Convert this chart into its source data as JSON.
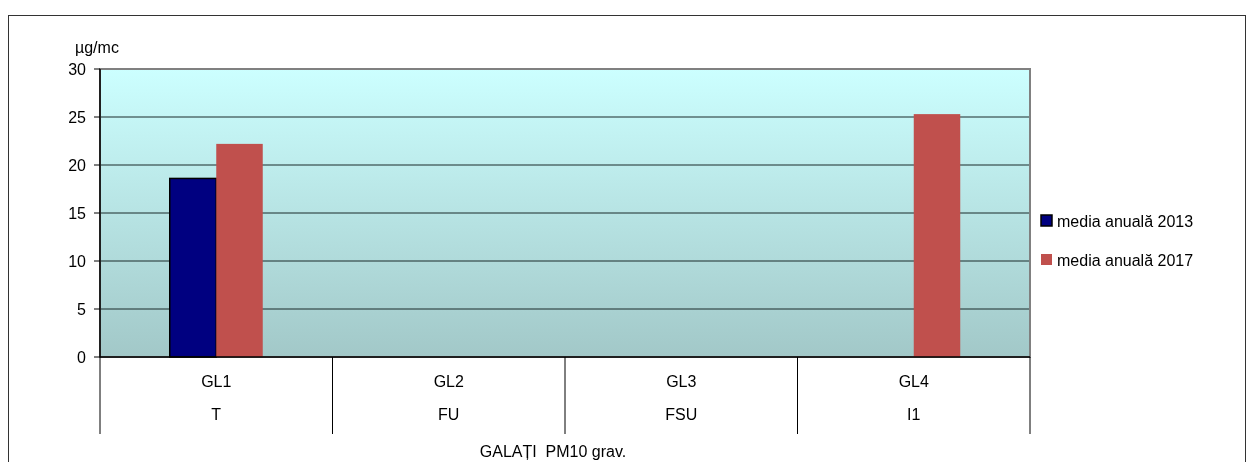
{
  "chart_data": {
    "type": "bar",
    "xlabel": "GALAȚI  PM10 grav.",
    "ylabel": "µg/mc",
    "categories": [
      "GL1\nT",
      "GL2\nFU",
      "GL3\nFSU",
      "GL4\nI1"
    ],
    "series": [
      {
        "name": "media anuală 2013",
        "color": "#000080",
        "values": [
          18.6,
          null,
          null,
          null
        ]
      },
      {
        "name": "media anuală 2017",
        "color": "#c0504d",
        "values": [
          22.2,
          null,
          null,
          25.3
        ]
      }
    ],
    "ylim": [
      0,
      30
    ],
    "yticks": [
      0,
      5,
      10,
      15,
      20,
      25,
      30
    ],
    "grid": "y",
    "legend": "right"
  }
}
